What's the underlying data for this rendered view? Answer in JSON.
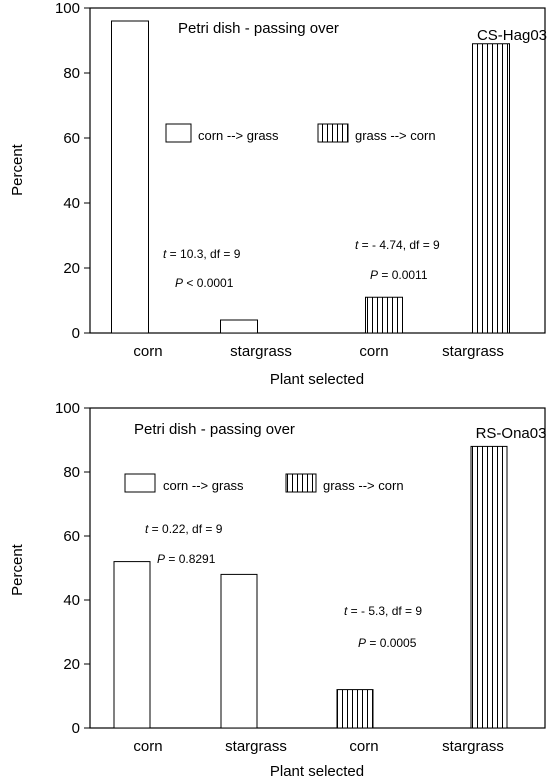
{
  "chart_data": [
    {
      "type": "bar",
      "title": "Petri dish - passing over",
      "label": "CS-Hag03",
      "xlabel": "Plant selected",
      "ylabel": "Percent",
      "ylim": [
        0,
        100
      ],
      "yticks": [
        "0",
        "20",
        "40",
        "60",
        "80",
        "100"
      ],
      "categories": [
        "corn",
        "stargrass",
        "corn",
        "stargrass"
      ],
      "series": [
        {
          "name": "corn --> grass",
          "pattern": "plain",
          "values": [
            96,
            4,
            null,
            null
          ]
        },
        {
          "name": "grass --> corn",
          "pattern": "vertical-stripes",
          "values": [
            null,
            null,
            11,
            89
          ]
        }
      ],
      "annotations": [
        {
          "t": "t",
          "stat": " = 10.3, df = 9",
          "p": "P",
          "pval": " < 0.0001"
        },
        {
          "t": "t",
          "stat": " = - 4.74, df = 9",
          "p": "P",
          "pval": " = 0.0011"
        }
      ],
      "legend": "top-center",
      "grid": false
    },
    {
      "type": "bar",
      "title": "Petri dish - passing over",
      "label": "RS-Ona03",
      "xlabel": "Plant selected",
      "ylabel": "Percent",
      "ylim": [
        0,
        100
      ],
      "yticks": [
        "0",
        "20",
        "40",
        "60",
        "80",
        "100"
      ],
      "categories": [
        "corn",
        "stargrass",
        "corn",
        "stargrass"
      ],
      "series": [
        {
          "name": "corn --> grass",
          "pattern": "plain",
          "values": [
            52,
            48,
            null,
            null
          ]
        },
        {
          "name": "grass --> corn",
          "pattern": "vertical-stripes",
          "values": [
            null,
            null,
            12,
            88
          ]
        }
      ],
      "annotations": [
        {
          "t": "t",
          "stat": " = 0.22, df = 9",
          "p": "P",
          "pval": " = 0.8291"
        },
        {
          "t": "t",
          "stat": " = - 5.3, df = 9",
          "p": "P",
          "pval": " = 0.0005"
        }
      ],
      "legend": "top-left",
      "grid": false
    }
  ]
}
